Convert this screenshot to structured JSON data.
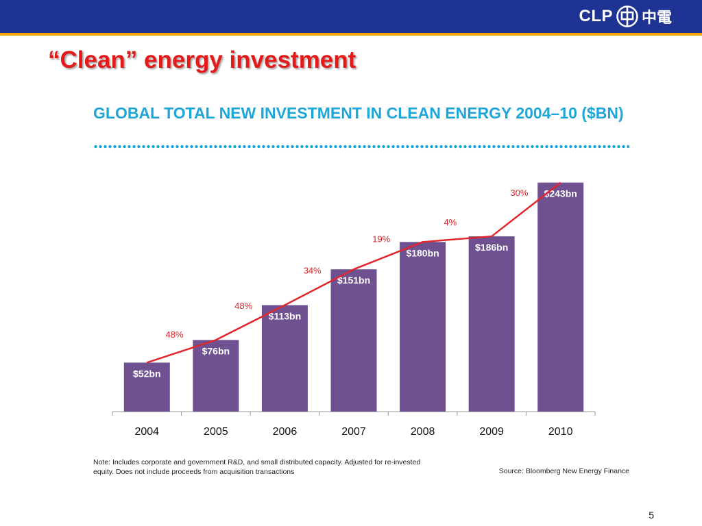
{
  "header": {
    "logo_text": "CLP",
    "logo_chars": "中電"
  },
  "slide": {
    "title": "“Clean” energy investment",
    "page_number": "5",
    "note": "Note: Includes corporate and government R&D, and small distributed capacity. Adjusted for re-invested equity. Does not include proceeds from acquisition transactions",
    "source": "Source: Bloomberg New Energy Finance"
  },
  "colors": {
    "header_bar": "#1e3394",
    "accent_line": "#f5a400",
    "title": "#e41b1b",
    "chart_title": "#1fa6d8",
    "bar": "#6f5191",
    "growth_line": "#e0262b"
  },
  "chart_data": {
    "type": "bar",
    "title": "GLOBAL TOTAL NEW INVESTMENT IN CLEAN ENERGY 2004–10 ($BN)",
    "categories": [
      "2004",
      "2005",
      "2006",
      "2007",
      "2008",
      "2009",
      "2010"
    ],
    "values": [
      52,
      76,
      113,
      151,
      180,
      186,
      243
    ],
    "bar_labels": [
      "$52bn",
      "$76bn",
      "$113bn",
      "$151bn",
      "$180bn",
      "$186bn",
      "$243bn"
    ],
    "growth_line": {
      "labels": [
        "48%",
        "48%",
        "34%",
        "19%",
        "4%",
        "30%"
      ]
    },
    "ylim": [
      0,
      250
    ],
    "grid": false,
    "legend": "none"
  }
}
